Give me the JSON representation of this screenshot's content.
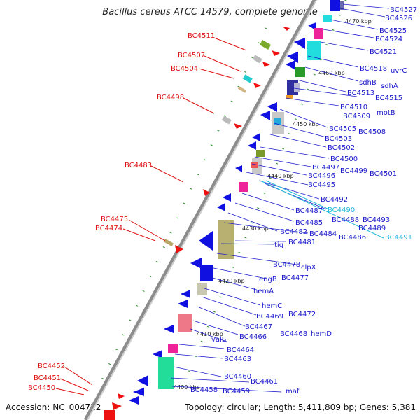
{
  "title": "Bacillus cereus ATCC 14579, complete genome",
  "footer": {
    "accession": "Accession: NC_004722",
    "summary": "Topology: circular; Length: 5,411,809 bp; Genes: 5,381"
  },
  "colors": {
    "forward_label": "#dd1111",
    "reverse_label": "#1a1acc",
    "rna_label": "#22b8d8",
    "backbone": "#9a9a9a",
    "gene_blue": "#1010e0",
    "gene_red": "#ee1111",
    "tick_green": "#1f8a1f"
  },
  "kbp_markers": [
    "4470 kbp",
    "4460 kbp",
    "4450 kbp",
    "4440 kbp",
    "4430 kbp",
    "4420 kbp",
    "4410 kbp",
    "4400 kbp"
  ],
  "forward_labels": [
    "BC4511",
    "BC4507",
    "BC4504",
    "BC4498",
    "BC4483",
    "BC4475",
    "BC4474",
    "BC4452",
    "BC4451",
    "BC4450"
  ],
  "reverse_labels": [
    "BC4527",
    "BC4526",
    "BC4525",
    "BC4524",
    "BC4521",
    "BC4518",
    "uvrC",
    "sdhB",
    "sdhA",
    "BC4513",
    "BC4515",
    "BC4510",
    "motB",
    "BC4509",
    "BC4505",
    "BC4508",
    "BC4503",
    "BC4502",
    "BC4500",
    "BC4497",
    "BC4499",
    "BC4501",
    "BC4496",
    "BC4495",
    "BC4492",
    "BC4490",
    "BC4487",
    "BC4488",
    "BC4493",
    "BC4485",
    "BC4489",
    "BC4491",
    "BC4482",
    "BC4484",
    "BC4486",
    "BC4481",
    "tig",
    "BC4478",
    "clpX",
    "engB",
    "BC4477",
    "hemA",
    "hemC",
    "BC4472",
    "BC4469",
    "BC4467",
    "hemD",
    "BC4468",
    "BC4466",
    "valS",
    "BC4464",
    "BC4463",
    "BC4460",
    "BC4461",
    "maf",
    "BC4458",
    "BC4459"
  ]
}
